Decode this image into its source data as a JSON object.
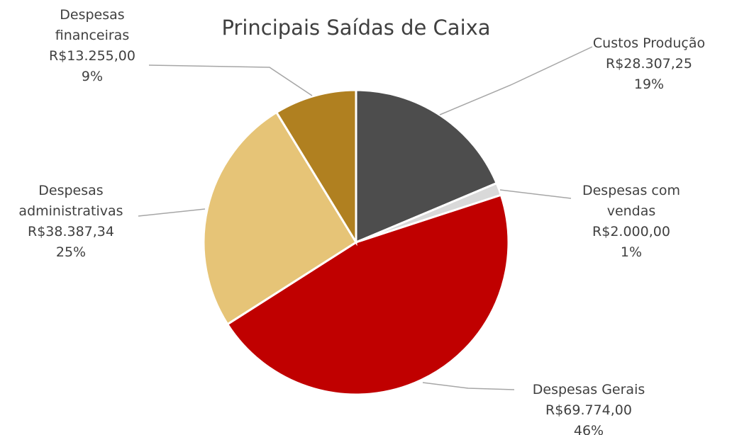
{
  "chart_data": {
    "type": "pie",
    "title": "Principais Saídas de Caixa",
    "categories": [
      "Custos Produção",
      "Despesas com vendas",
      "Despesas Gerais",
      "Despesas administrativas",
      "Despesas financeiras"
    ],
    "values": [
      28307.25,
      2000,
      69774,
      38387.34,
      13255
    ],
    "value_labels": [
      "R$28.307,25",
      "R$2.000,00",
      "R$69.774,00",
      "R$38.387,34",
      "R$13.255,00"
    ],
    "percents": [
      19,
      1,
      46,
      25,
      9
    ],
    "percent_labels": [
      "19%",
      "1%",
      "46%",
      "25%",
      "9%"
    ],
    "colors": [
      "#4d4d4d",
      "#d9d9d9",
      "#c00000",
      "#e6c477",
      "#b08020"
    ]
  }
}
